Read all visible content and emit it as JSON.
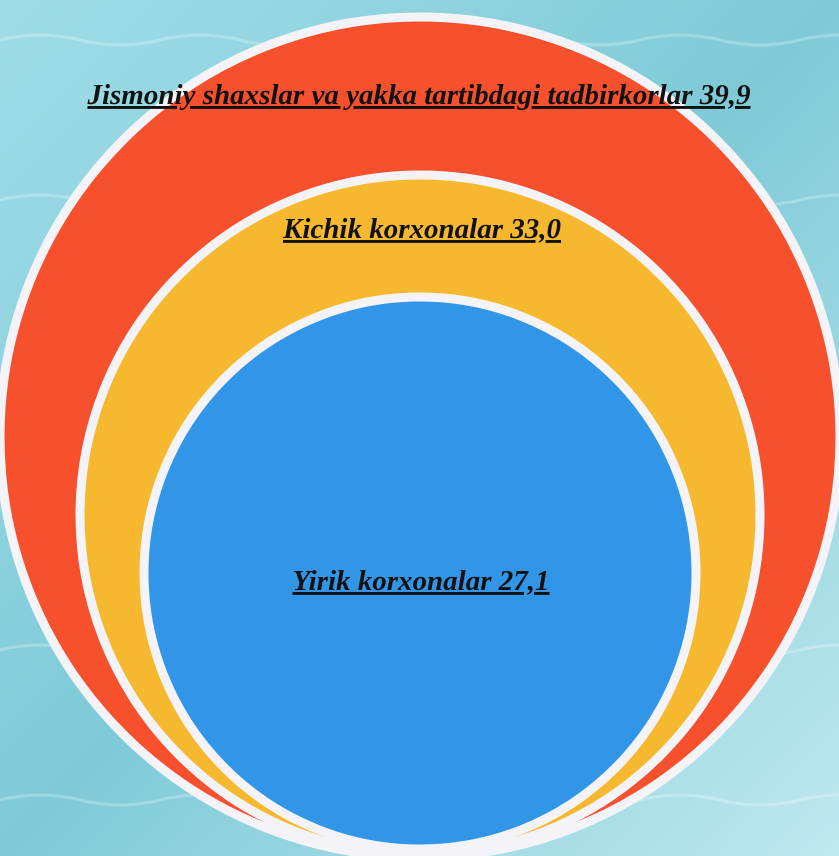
{
  "nodes": [
    {
      "label": "Jismoniy shaxslar va yakka tartibdagi tadbirkorlar 39,9"
    },
    {
      "label": "Kichik korxonalar 33,0"
    },
    {
      "label": "Yirik korxonalar 27,1"
    }
  ]
}
